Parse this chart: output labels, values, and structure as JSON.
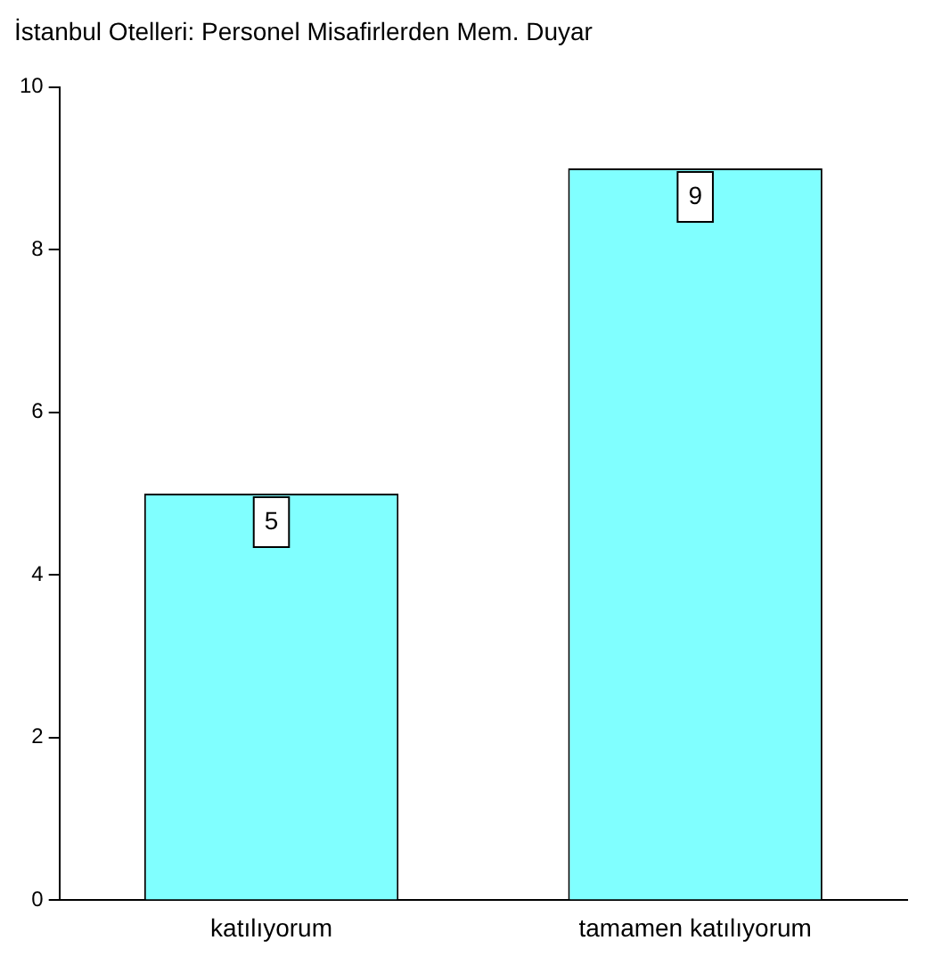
{
  "chart_data": {
    "type": "bar",
    "title": "İstanbul Otelleri: Personel Misafirlerden Mem. Duyar",
    "categories": [
      "katılıyorum",
      "tamamen katılıyorum"
    ],
    "values": [
      5,
      9
    ],
    "color": "#80ffff",
    "ylim": [
      0,
      10
    ],
    "yticks": [
      0,
      2,
      4,
      6,
      8,
      10
    ],
    "grid": false,
    "data_labels": true
  }
}
